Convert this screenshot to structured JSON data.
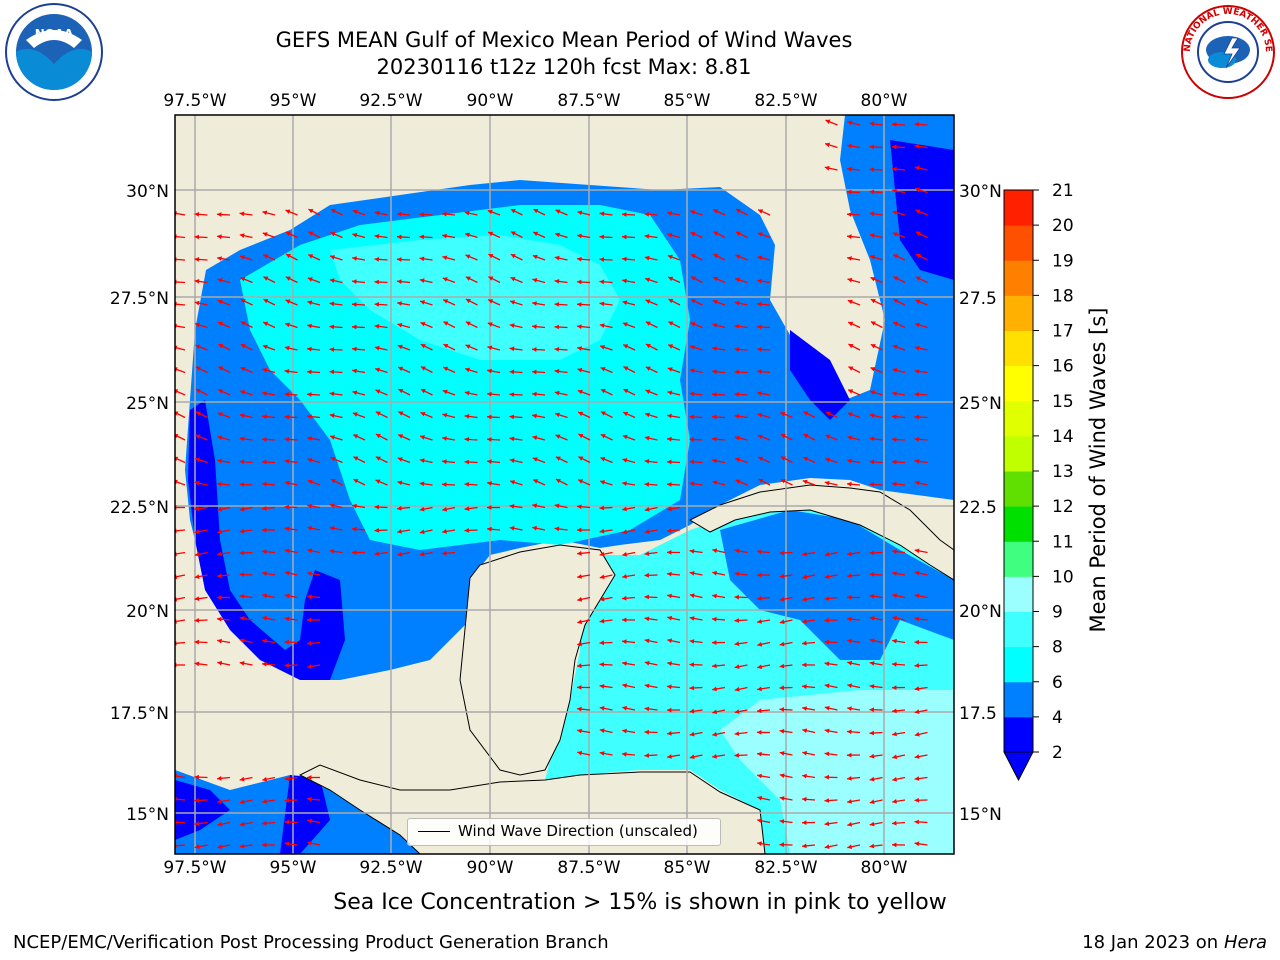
{
  "title": {
    "line1": "GEFS MEAN Gulf of Mexico Mean Period of Wind Waves",
    "line2": "20230116 t12z 120h fcst   Max: 8.81"
  },
  "logos": {
    "left": "noaa-logo",
    "right": "nws-logo",
    "left_text": "NOAA",
    "right_text": "NATIONAL WEATHER SERVICE"
  },
  "map": {
    "lon_ticks": [
      "97.5°W",
      "95°W",
      "92.5°W",
      "90°W",
      "87.5°W",
      "85°W",
      "82.5°W",
      "80°W"
    ],
    "lat_ticks": [
      "30°N",
      "27.5°N",
      "25°N",
      "22.5°N",
      "20°N",
      "17.5°N",
      "15°N"
    ],
    "lat_ticks_right": [
      "30°N",
      "27.5",
      "25°N",
      "22.5",
      "20°N",
      "17.5",
      "15°N"
    ],
    "land_color": "#efedda",
    "arrow_color": "#ff0000"
  },
  "legend": {
    "label": "Wind Wave Direction (unscaled)"
  },
  "colorbar": {
    "label": "Mean Period of Wind Waves [s]",
    "ticks": [
      "2",
      "4",
      "6",
      "8",
      "9",
      "10",
      "11",
      "12",
      "13",
      "14",
      "15",
      "16",
      "17",
      "18",
      "19",
      "20",
      "21"
    ],
    "colors": [
      "#0000ff",
      "#0080ff",
      "#00ffff",
      "#40ffff",
      "#9cffff",
      "#40ff80",
      "#00e000",
      "#60e000",
      "#c0ff00",
      "#e0ff00",
      "#ffff00",
      "#ffe000",
      "#ffb000",
      "#ff8000",
      "#ff5000",
      "#ff2000"
    ],
    "under_color": "#0000ff"
  },
  "subcaption": "Sea Ice Concentration > 15% is shown in pink to yellow",
  "footer": {
    "left": "NCEP/EMC/Verification Post Processing Product Generation Branch",
    "right_date": "18 Jan 2023 on ",
    "right_host": "Hera"
  }
}
